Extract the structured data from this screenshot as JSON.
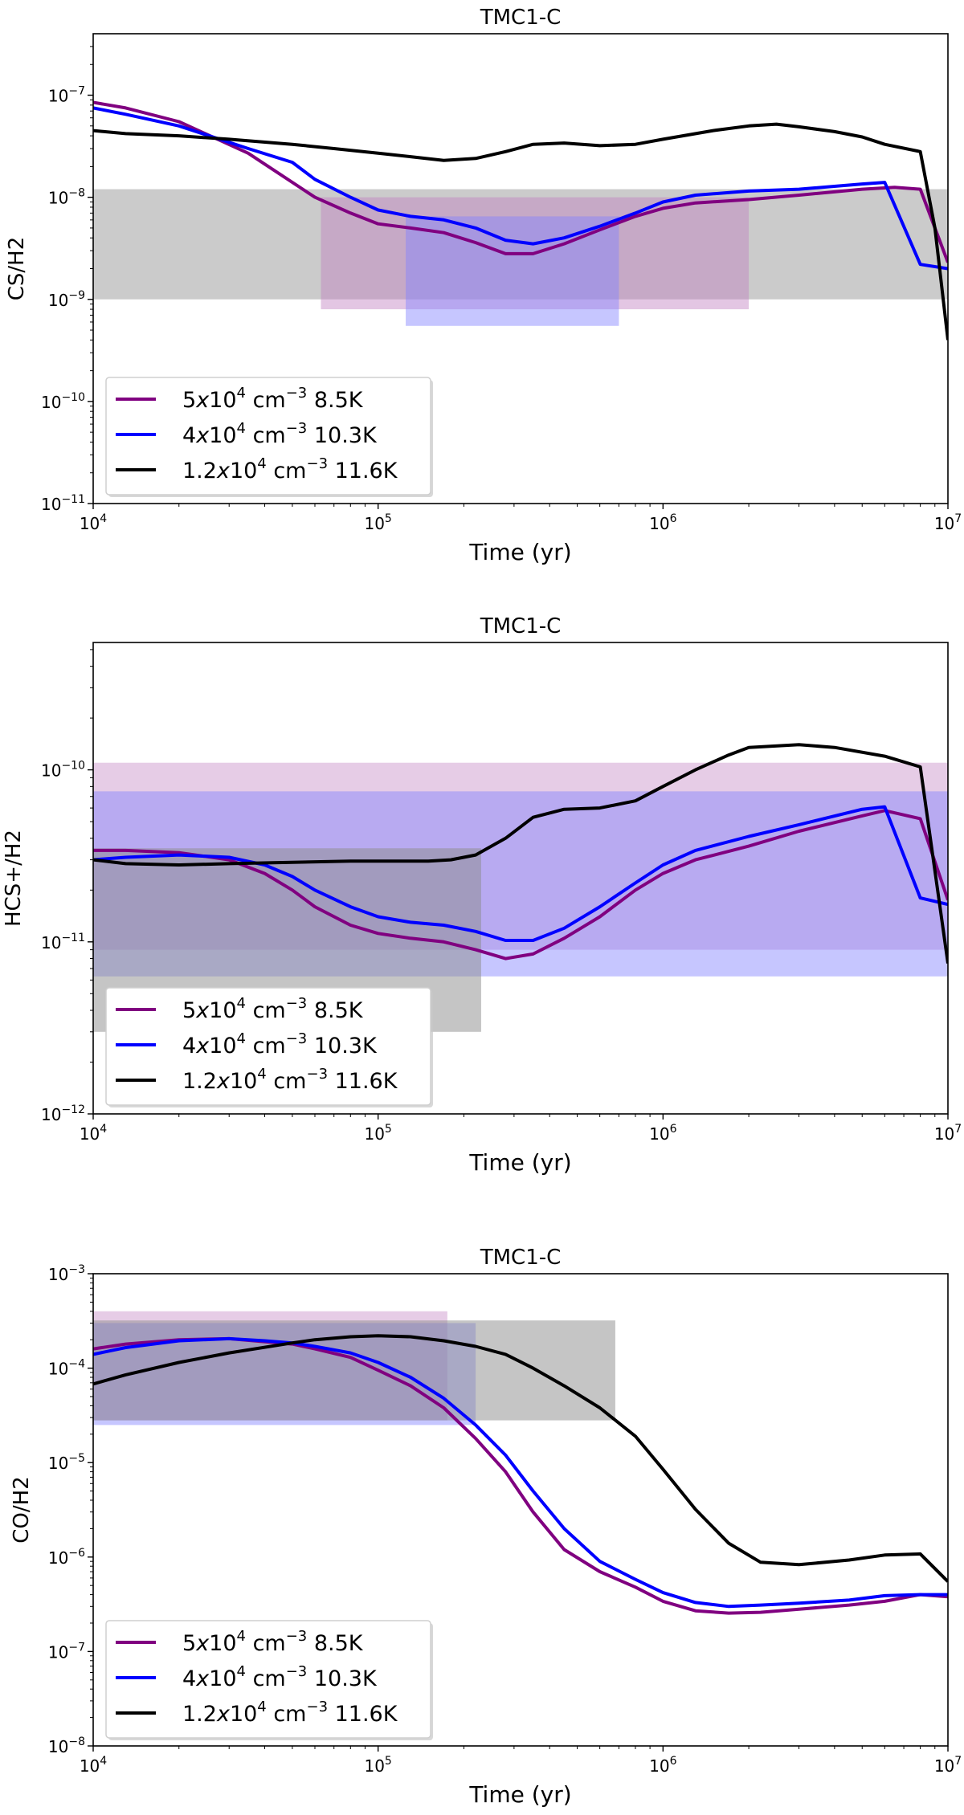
{
  "chart_data": [
    {
      "type": "line",
      "title": "TMC1-C",
      "xlabel": "Time (yr)",
      "ylabel": "CS/H2",
      "xscale": "log",
      "yscale": "log",
      "xlim": [
        10000,
        10000000
      ],
      "ylim": [
        1e-11,
        4e-07
      ],
      "x_ticks": [
        {
          "base": "10",
          "exp": "4"
        },
        {
          "base": "10",
          "exp": "5"
        },
        {
          "base": "10",
          "exp": "6"
        },
        {
          "base": "10",
          "exp": "7"
        }
      ],
      "x_tick_values": [
        4,
        5,
        6,
        7
      ],
      "y_ticks": [
        {
          "base": "10",
          "exp": "−11"
        },
        {
          "base": "10",
          "exp": "−10"
        },
        {
          "base": "10",
          "exp": "−9"
        },
        {
          "base": "10",
          "exp": "−8"
        },
        {
          "base": "10",
          "exp": "−7"
        }
      ],
      "y_tick_values": [
        -11,
        -10,
        -9,
        -8,
        -7
      ],
      "legend_position": "lower-left",
      "bands": [
        {
          "color": "#a0a0a0",
          "opacity": 0.55,
          "x": [
            10000,
            10000000
          ],
          "y": [
            1e-09,
            1.2e-08
          ]
        },
        {
          "color": "#c080c0",
          "opacity": 0.45,
          "x": [
            63000,
            2000000
          ],
          "y": [
            8e-10,
            1e-08
          ]
        },
        {
          "color": "#8080ff",
          "opacity": 0.45,
          "x": [
            125000,
            700000
          ],
          "y": [
            5.5e-10,
            6.5e-09
          ]
        }
      ],
      "series": [
        {
          "name": "5x10^4 cm^-3 8.5K",
          "color": "#800080",
          "x": [
            10000,
            13000,
            20000,
            35000,
            60000,
            80000,
            100000,
            130000,
            170000,
            220000,
            280000,
            350000,
            450000,
            600000,
            800000,
            1000000,
            1300000,
            2000000,
            3000000,
            5000000,
            6500000,
            8000000,
            10000000
          ],
          "y": [
            8.5e-08,
            7.5e-08,
            5.5e-08,
            2.7e-08,
            1e-08,
            7e-09,
            5.5e-09,
            5e-09,
            4.5e-09,
            3.6e-09,
            2.8e-09,
            2.8e-09,
            3.5e-09,
            4.8e-09,
            6.5e-09,
            7.8e-09,
            8.8e-09,
            9.5e-09,
            1.05e-08,
            1.2e-08,
            1.25e-08,
            1.2e-08,
            2.3e-09
          ]
        },
        {
          "name": "4x10^4 cm^-3 10.3K",
          "color": "#0000ff",
          "x": [
            10000,
            13000,
            20000,
            35000,
            50000,
            60000,
            80000,
            100000,
            130000,
            170000,
            220000,
            280000,
            350000,
            450000,
            600000,
            800000,
            1000000,
            1300000,
            2000000,
            3000000,
            5000000,
            6000000,
            8000000,
            10000000
          ],
          "y": [
            7.5e-08,
            6.5e-08,
            5e-08,
            3e-08,
            2.2e-08,
            1.5e-08,
            1e-08,
            7.5e-09,
            6.5e-09,
            6e-09,
            5e-09,
            3.8e-09,
            3.5e-09,
            4e-09,
            5.2e-09,
            7e-09,
            9e-09,
            1.05e-08,
            1.15e-08,
            1.2e-08,
            1.35e-08,
            1.4e-08,
            2.2e-09,
            2e-09
          ]
        },
        {
          "name": "1.2x10^4 cm^-3 11.6K",
          "color": "#000000",
          "x": [
            10000,
            13000,
            20000,
            30000,
            50000,
            70000,
            100000,
            130000,
            170000,
            220000,
            280000,
            350000,
            450000,
            600000,
            800000,
            1000000,
            1500000,
            2000000,
            2500000,
            3000000,
            4000000,
            5000000,
            6000000,
            8000000,
            9000000,
            10000000
          ],
          "y": [
            4.5e-08,
            4.2e-08,
            4e-08,
            3.7e-08,
            3.3e-08,
            3e-08,
            2.7e-08,
            2.5e-08,
            2.3e-08,
            2.4e-08,
            2.8e-08,
            3.3e-08,
            3.4e-08,
            3.2e-08,
            3.3e-08,
            3.7e-08,
            4.5e-08,
            5e-08,
            5.2e-08,
            4.9e-08,
            4.4e-08,
            3.9e-08,
            3.3e-08,
            2.8e-08,
            5e-09,
            4e-10
          ]
        }
      ]
    },
    {
      "type": "line",
      "title": "TMC1-C",
      "xlabel": "Time (yr)",
      "ylabel": "HCS+/H2",
      "xscale": "log",
      "yscale": "log",
      "xlim": [
        10000,
        10000000
      ],
      "ylim": [
        1e-12,
        5.5e-10
      ],
      "x_ticks": [
        {
          "base": "10",
          "exp": "4"
        },
        {
          "base": "10",
          "exp": "5"
        },
        {
          "base": "10",
          "exp": "6"
        },
        {
          "base": "10",
          "exp": "7"
        }
      ],
      "x_tick_values": [
        4,
        5,
        6,
        7
      ],
      "y_ticks": [
        {
          "base": "10",
          "exp": "−12"
        },
        {
          "base": "10",
          "exp": "−11"
        },
        {
          "base": "10",
          "exp": "−10"
        }
      ],
      "y_tick_values": [
        -12,
        -11,
        -10
      ],
      "legend_position": "lower-left",
      "bands": [
        {
          "color": "#c080c0",
          "opacity": 0.4,
          "x": [
            10000,
            10000000
          ],
          "y": [
            9e-12,
            1.1e-10
          ]
        },
        {
          "color": "#8080ff",
          "opacity": 0.45,
          "x": [
            10000,
            10000000
          ],
          "y": [
            6.3e-12,
            7.5e-11
          ]
        },
        {
          "color": "#8c8c8c",
          "opacity": 0.5,
          "x": [
            10000,
            230000
          ],
          "y": [
            3e-12,
            3.5e-11
          ]
        }
      ],
      "series": [
        {
          "name": "5x10^4 cm^-3 8.5K",
          "color": "#800080",
          "x": [
            10000,
            13000,
            20000,
            30000,
            40000,
            50000,
            60000,
            80000,
            100000,
            130000,
            170000,
            220000,
            280000,
            350000,
            450000,
            600000,
            800000,
            1000000,
            1300000,
            2000000,
            3000000,
            5000000,
            6000000,
            8000000,
            10000000
          ],
          "y": [
            3.4e-11,
            3.4e-11,
            3.3e-11,
            3e-11,
            2.5e-11,
            2e-11,
            1.6e-11,
            1.25e-11,
            1.12e-11,
            1.05e-11,
            1e-11,
            9e-12,
            8e-12,
            8.5e-12,
            1.05e-11,
            1.4e-11,
            2e-11,
            2.5e-11,
            3e-11,
            3.6e-11,
            4.4e-11,
            5.4e-11,
            5.8e-11,
            5.2e-11,
            1.75e-11
          ]
        },
        {
          "name": "4x10^4 cm^-3 10.3K",
          "color": "#0000ff",
          "x": [
            10000,
            13000,
            20000,
            30000,
            40000,
            50000,
            60000,
            80000,
            100000,
            130000,
            170000,
            220000,
            280000,
            350000,
            450000,
            600000,
            800000,
            1000000,
            1300000,
            2000000,
            3000000,
            5000000,
            6000000,
            8000000,
            10000000
          ],
          "y": [
            3e-11,
            3.1e-11,
            3.2e-11,
            3.1e-11,
            2.8e-11,
            2.4e-11,
            2e-11,
            1.6e-11,
            1.4e-11,
            1.3e-11,
            1.25e-11,
            1.15e-11,
            1.02e-11,
            1.02e-11,
            1.2e-11,
            1.6e-11,
            2.2e-11,
            2.8e-11,
            3.4e-11,
            4.1e-11,
            4.8e-11,
            5.9e-11,
            6.1e-11,
            1.8e-11,
            1.65e-11
          ]
        },
        {
          "name": "1.2x10^4 cm^-3 11.6K",
          "color": "#000000",
          "x": [
            10000,
            13000,
            20000,
            30000,
            50000,
            80000,
            100000,
            150000,
            180000,
            220000,
            280000,
            350000,
            450000,
            600000,
            800000,
            1000000,
            1300000,
            1700000,
            2000000,
            3000000,
            4000000,
            6000000,
            8000000,
            10000000
          ],
          "y": [
            3e-11,
            2.85e-11,
            2.8e-11,
            2.85e-11,
            2.9e-11,
            2.95e-11,
            2.95e-11,
            2.95e-11,
            3e-11,
            3.2e-11,
            4e-11,
            5.3e-11,
            5.9e-11,
            6e-11,
            6.6e-11,
            8e-11,
            1e-10,
            1.22e-10,
            1.35e-10,
            1.4e-10,
            1.35e-10,
            1.2e-10,
            1.04e-10,
            7.5e-12
          ]
        }
      ]
    },
    {
      "type": "line",
      "title": "TMC1-C",
      "xlabel": "Time (yr)",
      "ylabel": "CO/H2",
      "xscale": "log",
      "yscale": "log",
      "xlim": [
        10000,
        10000000
      ],
      "ylim": [
        1e-08,
        0.001
      ],
      "x_ticks": [
        {
          "base": "10",
          "exp": "4"
        },
        {
          "base": "10",
          "exp": "5"
        },
        {
          "base": "10",
          "exp": "6"
        },
        {
          "base": "10",
          "exp": "7"
        }
      ],
      "x_tick_values": [
        4,
        5,
        6,
        7
      ],
      "y_ticks": [
        {
          "base": "10",
          "exp": "−8"
        },
        {
          "base": "10",
          "exp": "−7"
        },
        {
          "base": "10",
          "exp": "−6"
        },
        {
          "base": "10",
          "exp": "−5"
        },
        {
          "base": "10",
          "exp": "−4"
        },
        {
          "base": "10",
          "exp": "−3"
        }
      ],
      "y_tick_values": [
        -8,
        -7,
        -6,
        -5,
        -4,
        -3
      ],
      "legend_position": "lower-left",
      "bands": [
        {
          "color": "#c080c0",
          "opacity": 0.4,
          "x": [
            10000,
            175000
          ],
          "y": [
            2.8e-05,
            0.0004
          ]
        },
        {
          "color": "#8080ff",
          "opacity": 0.45,
          "x": [
            10000,
            220000
          ],
          "y": [
            2.5e-05,
            0.0003
          ]
        },
        {
          "color": "#8c8c8c",
          "opacity": 0.5,
          "x": [
            10000,
            680000
          ],
          "y": [
            2.8e-05,
            0.00032
          ]
        }
      ],
      "series": [
        {
          "name": "5x10^4 cm^-3 8.5K",
          "color": "#800080",
          "x": [
            10000,
            13000,
            20000,
            30000,
            50000,
            60000,
            80000,
            100000,
            130000,
            170000,
            220000,
            280000,
            350000,
            450000,
            600000,
            800000,
            1000000,
            1300000,
            1700000,
            2200000,
            3000000,
            4500000,
            6000000,
            8000000,
            10000000
          ],
          "y": [
            0.00016,
            0.00018,
            0.0002,
            0.000205,
            0.00018,
            0.00016,
            0.00013,
            9.5e-05,
            6.5e-05,
            3.8e-05,
            1.8e-05,
            8e-06,
            3e-06,
            1.2e-06,
            7e-07,
            4.8e-07,
            3.4e-07,
            2.7e-07,
            2.55e-07,
            2.6e-07,
            2.8e-07,
            3.1e-07,
            3.4e-07,
            4e-07,
            3.8e-07
          ]
        },
        {
          "name": "4x10^4 cm^-3 10.3K",
          "color": "#0000ff",
          "x": [
            10000,
            13000,
            20000,
            30000,
            40000,
            50000,
            60000,
            80000,
            100000,
            130000,
            170000,
            220000,
            280000,
            350000,
            450000,
            600000,
            800000,
            1000000,
            1300000,
            1700000,
            2200000,
            3000000,
            4500000,
            6000000,
            8000000,
            10000000
          ],
          "y": [
            0.00014,
            0.000165,
            0.000195,
            0.000205,
            0.000195,
            0.000185,
            0.00017,
            0.000145,
            0.000115,
            8e-05,
            4.8e-05,
            2.5e-05,
            1.2e-05,
            5e-06,
            2e-06,
            9e-07,
            5.8e-07,
            4.2e-07,
            3.3e-07,
            3e-07,
            3.1e-07,
            3.25e-07,
            3.5e-07,
            3.9e-07,
            4e-07,
            4e-07
          ]
        },
        {
          "name": "1.2x10^4 cm^-3 11.6K",
          "color": "#000000",
          "x": [
            10000,
            13000,
            20000,
            30000,
            50000,
            60000,
            80000,
            100000,
            130000,
            170000,
            220000,
            280000,
            350000,
            450000,
            600000,
            800000,
            1000000,
            1300000,
            1700000,
            2200000,
            3000000,
            4500000,
            6000000,
            8000000,
            10000000
          ],
          "y": [
            6.8e-05,
            8.5e-05,
            0.000115,
            0.000145,
            0.000185,
            0.0002,
            0.000215,
            0.00022,
            0.000215,
            0.000195,
            0.00017,
            0.00014,
            0.0001,
            6.5e-05,
            3.8e-05,
            1.9e-05,
            8.5e-06,
            3.2e-06,
            1.4e-06,
            8.8e-07,
            8.3e-07,
            9.3e-07,
            1.05e-06,
            1.08e-06,
            5.5e-07
          ]
        }
      ]
    }
  ],
  "legend": [
    {
      "id": "purple",
      "color": "#800080",
      "prefix": "5",
      "mid": "x",
      "pow": "4",
      "unit": " cm",
      "unit_exp": "−3",
      "suffix": " 8.5K"
    },
    {
      "id": "blue",
      "color": "#0000ff",
      "prefix": "4",
      "mid": "x",
      "pow": "4",
      "unit": " cm",
      "unit_exp": "−3",
      "suffix": " 10.3K"
    },
    {
      "id": "black",
      "color": "#000000",
      "prefix": "1.2",
      "mid": "x",
      "pow": "4",
      "unit": " cm",
      "unit_exp": "−3",
      "suffix": " 11.6K"
    }
  ]
}
